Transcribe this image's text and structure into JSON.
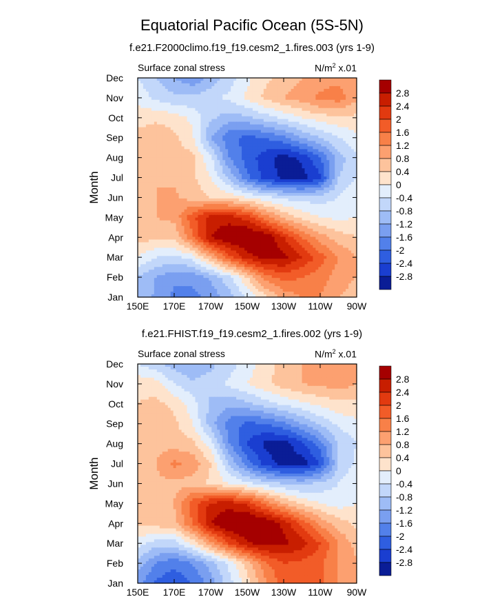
{
  "title": "Equatorial Pacific Ocean (5S-5N)",
  "colorbar": {
    "labels": [
      "2.8",
      "2.4",
      "2",
      "1.6",
      "1.2",
      "0.8",
      "0.4",
      "0",
      "-0.4",
      "-0.8",
      "-1.2",
      "-1.6",
      "-2",
      "-2.4",
      "-2.8"
    ],
    "colors": [
      "#a50000",
      "#c81e00",
      "#e23a10",
      "#f25c28",
      "#f88048",
      "#fca070",
      "#fdc39c",
      "#fee3cc",
      "#e3eefc",
      "#c2d7fa",
      "#9ebcf6",
      "#7a9ff0",
      "#5280ea",
      "#2f5ee0",
      "#1a3ed0",
      "#0a1d96"
    ]
  },
  "chart_data": [
    {
      "type": "heatmap",
      "title": "f.e21.F2000climo.f19_f19.cesm2_1.fires.003 (yrs 1-9)",
      "left_label": "Surface zonal stress",
      "units_label": "N/m",
      "units_exp": "2",
      "units_scale": " x.01",
      "ylabel": "Month",
      "xlabel": "",
      "xticks": [
        "150E",
        "170E",
        "170W",
        "150W",
        "130W",
        "110W",
        "90W"
      ],
      "yticks": [
        "Jan",
        "Feb",
        "Mar",
        "Apr",
        "May",
        "Jun",
        "Jul",
        "Aug",
        "Sep",
        "Oct",
        "Nov",
        "Dec"
      ],
      "xlim": [
        150,
        270
      ],
      "ylim": [
        1,
        12
      ],
      "levels": [
        -2.8,
        -2.4,
        -2,
        -1.6,
        -1.2,
        -0.8,
        -0.4,
        0,
        0.4,
        0.8,
        1.2,
        1.6,
        2,
        2.4,
        2.8
      ],
      "x": [
        150,
        160,
        170,
        180,
        190,
        200,
        210,
        220,
        230,
        240,
        250,
        260,
        270
      ],
      "z": [
        [
          -0.8,
          -1.3,
          -1.7,
          -1.7,
          -1.5,
          -1.0,
          -0.4,
          0.3,
          0.9,
          1.2,
          1.2,
          0.8,
          0.6
        ],
        [
          -0.8,
          -1.2,
          -1.5,
          -1.5,
          -1.1,
          -0.5,
          0.4,
          1.4,
          1.8,
          1.6,
          1.4,
          1.0,
          0.8
        ],
        [
          0.0,
          -0.4,
          -0.5,
          -0.2,
          0.8,
          1.8,
          2.6,
          3.0,
          2.9,
          2.4,
          1.8,
          1.2,
          0.8
        ],
        [
          0.6,
          0.5,
          0.5,
          1.5,
          2.8,
          3.2,
          3.4,
          3.2,
          2.4,
          1.6,
          1.0,
          0.6,
          0.4
        ],
        [
          0.7,
          0.8,
          0.9,
          1.9,
          2.6,
          2.6,
          2.2,
          1.4,
          0.7,
          0.3,
          0.0,
          -0.1,
          0.0
        ],
        [
          0.7,
          0.8,
          0.9,
          0.6,
          0.4,
          0.3,
          0.0,
          -0.3,
          -0.5,
          -0.6,
          -0.6,
          -0.4,
          0.0
        ],
        [
          0.7,
          0.8,
          0.7,
          0.5,
          0.0,
          -0.9,
          -1.9,
          -2.6,
          -2.9,
          -3.0,
          -2.5,
          -0.8,
          -0.4
        ],
        [
          0.6,
          0.7,
          0.6,
          0.5,
          -0.3,
          -1.6,
          -2.2,
          -2.6,
          -3.0,
          -2.7,
          -2.0,
          -1.0,
          -0.5
        ],
        [
          0.6,
          0.7,
          0.5,
          0.1,
          -1.2,
          -1.9,
          -2.1,
          -2.0,
          -1.7,
          -1.2,
          -0.8,
          -0.4,
          -0.1
        ],
        [
          0.2,
          0.3,
          0.2,
          -0.1,
          -0.7,
          -1.0,
          -0.9,
          -0.6,
          -0.3,
          0.0,
          0.2,
          0.3,
          0.3
        ],
        [
          -0.1,
          -0.5,
          -0.7,
          -0.7,
          -0.5,
          -0.3,
          0.1,
          0.5,
          0.8,
          1.0,
          1.3,
          1.4,
          0.9
        ],
        [
          -0.4,
          -0.8,
          -1.2,
          -1.5,
          -1.1,
          -0.6,
          -0.1,
          0.3,
          0.6,
          0.8,
          1.0,
          1.1,
          0.9
        ]
      ]
    },
    {
      "type": "heatmap",
      "title": "f.e21.FHIST.f19_f19.cesm2_1.fires.002 (yrs 1-9)",
      "left_label": "Surface zonal stress",
      "units_label": "N/m",
      "units_exp": "2",
      "units_scale": " x.01",
      "ylabel": "Month",
      "xlabel": "",
      "xticks": [
        "150E",
        "170E",
        "170W",
        "150W",
        "130W",
        "110W",
        "90W"
      ],
      "yticks": [
        "Jan",
        "Feb",
        "Mar",
        "Apr",
        "May",
        "Jun",
        "Jul",
        "Aug",
        "Sep",
        "Oct",
        "Nov",
        "Dec"
      ],
      "xlim": [
        150,
        270
      ],
      "ylim": [
        1,
        12
      ],
      "levels": [
        -2.8,
        -2.4,
        -2,
        -1.6,
        -1.2,
        -0.8,
        -0.4,
        0,
        0.4,
        0.8,
        1.2,
        1.6,
        2,
        2.4,
        2.8
      ],
      "x": [
        150,
        160,
        170,
        180,
        190,
        200,
        210,
        220,
        230,
        240,
        250,
        260,
        270
      ],
      "z": [
        [
          -1.4,
          -2.1,
          -2.3,
          -2.0,
          -1.4,
          -0.6,
          0.2,
          1.1,
          1.8,
          2.0,
          1.7,
          1.2,
          0.8
        ],
        [
          -1.0,
          -1.6,
          -1.9,
          -1.6,
          -1.0,
          -0.3,
          0.6,
          1.5,
          2.0,
          1.9,
          1.7,
          1.2,
          0.9
        ],
        [
          -0.2,
          -0.6,
          -0.6,
          0.1,
          1.0,
          2.0,
          2.7,
          3.0,
          2.9,
          2.6,
          2.0,
          1.2,
          0.6
        ],
        [
          0.5,
          0.6,
          0.7,
          1.6,
          2.8,
          3.3,
          3.4,
          3.2,
          2.7,
          1.9,
          1.1,
          0.6,
          0.3
        ],
        [
          0.7,
          0.7,
          0.8,
          1.8,
          2.5,
          2.6,
          2.3,
          1.5,
          0.8,
          0.3,
          0.0,
          -0.2,
          0.0
        ],
        [
          0.7,
          0.7,
          0.7,
          0.6,
          0.3,
          0.0,
          -0.3,
          -0.6,
          -0.8,
          -0.9,
          -0.7,
          -0.4,
          0.0
        ],
        [
          0.7,
          0.8,
          1.3,
          1.1,
          0.4,
          -0.8,
          -1.8,
          -2.6,
          -3.0,
          -3.0,
          -2.4,
          -0.8,
          -0.3
        ],
        [
          0.6,
          0.7,
          0.6,
          0.5,
          -0.2,
          -1.6,
          -2.4,
          -2.9,
          -3.0,
          -2.5,
          -1.8,
          -0.8,
          -0.4
        ],
        [
          0.6,
          0.7,
          0.5,
          0.0,
          -1.0,
          -1.8,
          -2.1,
          -2.0,
          -1.7,
          -1.2,
          -0.7,
          -0.3,
          -0.1
        ],
        [
          0.4,
          0.5,
          0.3,
          -0.2,
          -0.9,
          -1.1,
          -0.9,
          -0.6,
          -0.3,
          -0.1,
          0.1,
          0.3,
          0.3
        ],
        [
          0.3,
          0.2,
          -0.4,
          -0.7,
          -0.6,
          -0.3,
          0.0,
          0.3,
          0.6,
          0.8,
          0.9,
          1.0,
          0.8
        ],
        [
          -0.4,
          -0.7,
          -1.0,
          -1.2,
          -0.9,
          -0.6,
          -0.2,
          0.2,
          0.6,
          0.8,
          1.0,
          1.2,
          0.9
        ]
      ]
    }
  ]
}
